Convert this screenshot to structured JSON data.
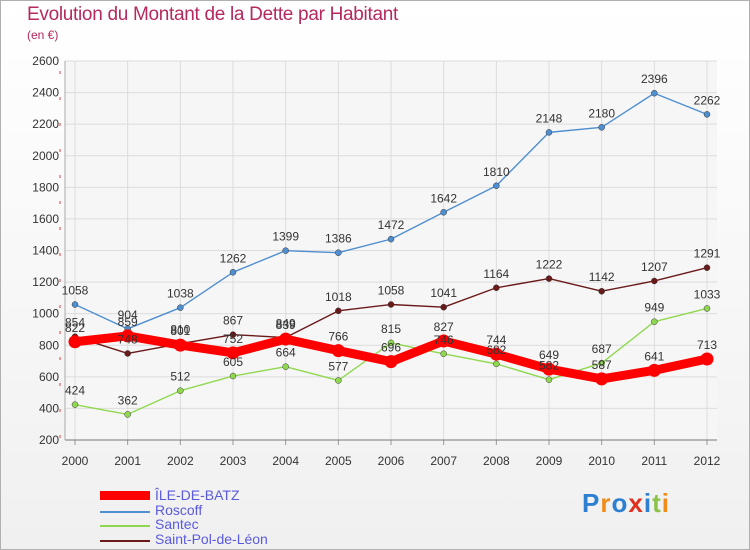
{
  "title": "Evolution du Montant de la Dette par Habitant",
  "subtitle": "(en €)",
  "logo_text": "Proxiti",
  "chart_data": {
    "type": "line",
    "title": "Evolution du Montant de la Dette par Habitant",
    "subtitle": "(en €)",
    "x": [
      2000,
      2001,
      2002,
      2003,
      2004,
      2005,
      2006,
      2007,
      2008,
      2009,
      2010,
      2011,
      2012
    ],
    "ylim": [
      200,
      2600
    ],
    "yticks": [
      200,
      400,
      600,
      800,
      1000,
      1200,
      1400,
      1600,
      1800,
      2000,
      2200,
      2400,
      2600
    ],
    "grid": true,
    "legend_position": "bottom-left",
    "series": [
      {
        "name": "ÎLE-DE-BATZ",
        "color": "#ff0000",
        "values": [
          822,
          859,
          801,
          752,
          839,
          766,
          696,
          827,
          744,
          649,
          587,
          641,
          713
        ]
      },
      {
        "name": "Roscoff",
        "color": "#4f8fcf",
        "values": [
          1058,
          904,
          1038,
          1262,
          1399,
          1386,
          1472,
          1642,
          1810,
          2148,
          2180,
          2396,
          2262
        ]
      },
      {
        "name": "Santec",
        "color": "#8fd84f",
        "values": [
          424,
          362,
          512,
          605,
          664,
          577,
          815,
          746,
          682,
          582,
          687,
          949,
          1033
        ]
      },
      {
        "name": "Saint-Pol-de-Léon",
        "color": "#6b1a1a",
        "values": [
          854,
          748,
          810,
          867,
          849,
          1018,
          1058,
          1041,
          1164,
          1222,
          1142,
          1207,
          1291
        ]
      }
    ]
  }
}
